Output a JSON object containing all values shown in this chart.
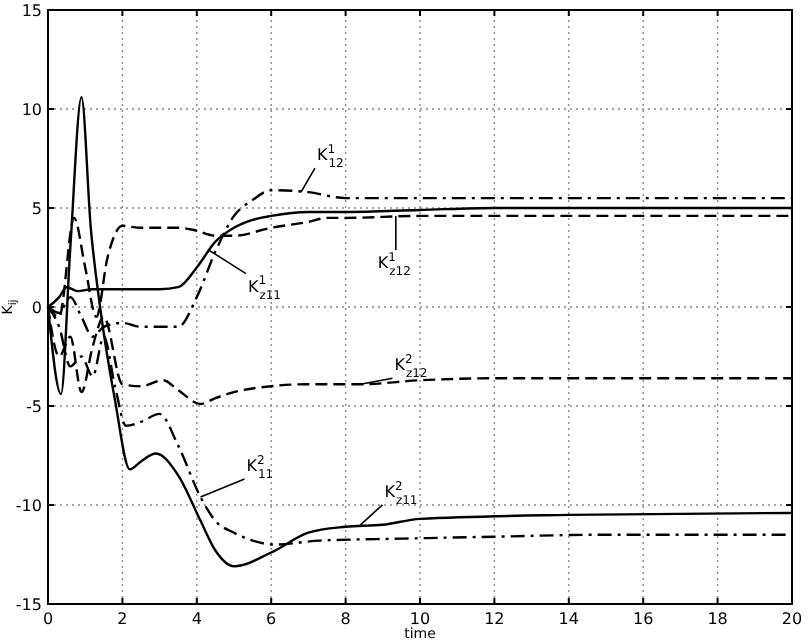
{
  "chart_data": {
    "type": "line",
    "xlabel": "time",
    "ylabel": "K$_{ij}$",
    "xlim": [
      0,
      20
    ],
    "ylim": [
      -15,
      15
    ],
    "xticks": [
      0,
      2,
      4,
      6,
      8,
      10,
      12,
      14,
      16,
      18,
      20
    ],
    "yticks": [
      -15,
      -10,
      -5,
      0,
      5,
      10,
      15
    ],
    "grid": true,
    "marker": "none",
    "series": [
      {
        "color": "#000000",
        "line_style": "dashdot",
        "x": [
          0,
          0.3,
          0.6,
          0.9,
          1.2,
          1.5,
          2,
          2.5,
          3,
          3.5,
          4,
          4.5,
          5,
          5.5,
          6,
          7,
          8,
          10,
          12,
          15,
          20
        ],
        "values": [
          0,
          -0.3,
          0.5,
          -0.5,
          -1.5,
          -1,
          -0.8,
          -1,
          -1,
          -1,
          0.5,
          2.8,
          4.6,
          5.4,
          5.9,
          5.8,
          5.5,
          5.5,
          5.5,
          5.5,
          5.5
        ]
      },
      {
        "color": "#000000",
        "line_style": "dashed",
        "x": [
          0,
          0.3,
          0.7,
          1.0,
          1.3,
          1.6,
          2,
          2.5,
          3,
          3.5,
          3.9,
          4.5,
          5,
          6,
          7,
          7.5,
          8,
          10,
          12,
          15,
          20
        ],
        "values": [
          0,
          -0.5,
          4.5,
          2,
          -0.5,
          2.5,
          4.1,
          4.0,
          4.0,
          4.0,
          3.9,
          3.6,
          3.6,
          4.0,
          4.3,
          4.5,
          4.5,
          4.6,
          4.6,
          4.6,
          4.6
        ]
      },
      {
        "color": "#000000",
        "line_style": "solid",
        "x": [
          0,
          0.3,
          0.5,
          0.8,
          1.2,
          1.5,
          2,
          2.5,
          3,
          3.5,
          4,
          4.5,
          5,
          5.5,
          6,
          7,
          8,
          10,
          12,
          15,
          20
        ],
        "values": [
          0,
          0.5,
          1.0,
          0.8,
          0.9,
          0.9,
          0.9,
          0.9,
          0.9,
          1.0,
          2.0,
          3.3,
          4.0,
          4.4,
          4.6,
          4.8,
          4.8,
          4.9,
          5.0,
          5.0,
          5.0
        ]
      },
      {
        "color": "#000000",
        "line_style": "dashed",
        "x": [
          0,
          0.3,
          0.6,
          0.9,
          1.2,
          1.5,
          2,
          2.5,
          3.1,
          3.5,
          4.1,
          4.5,
          5,
          6,
          7,
          8.4,
          10,
          12,
          15,
          20
        ],
        "values": [
          0,
          -2.5,
          -1.5,
          -4.3,
          -2,
          -0.5,
          -3.9,
          -4,
          -3.7,
          -4.2,
          -4.9,
          -4.6,
          -4.3,
          -4,
          -3.9,
          -3.9,
          -3.7,
          -3.6,
          -3.6,
          -3.6
        ]
      },
      {
        "color": "#000000",
        "line_style": "dashdot",
        "x": [
          0,
          0.3,
          0.6,
          0.9,
          1.2,
          1.5,
          1.8,
          2.1,
          2.5,
          3,
          3.5,
          4.1,
          4.5,
          5,
          5.5,
          6.1,
          7.3,
          9.5,
          12,
          15,
          20
        ],
        "values": [
          0,
          -1,
          -3,
          -2.5,
          -3.5,
          -1.5,
          -4,
          -6.0,
          -5.8,
          -5.4,
          -7,
          -9.6,
          -10.8,
          -11.4,
          -11.8,
          -12.0,
          -11.8,
          -11.7,
          -11.6,
          -11.5,
          -11.5
        ]
      },
      {
        "color": "#000000",
        "line_style": "solid",
        "x": [
          0,
          0.35,
          0.6,
          0.9,
          1.15,
          1.4,
          1.8,
          2.2,
          2.5,
          2.9,
          3.5,
          4.1,
          4.5,
          5,
          6,
          7,
          8,
          9,
          10,
          14,
          20
        ],
        "values": [
          0,
          -4.4,
          3,
          10.6,
          4,
          0,
          -4.7,
          -8.2,
          -7.8,
          -7.4,
          -8.5,
          -10.8,
          -12.3,
          -13.1,
          -12.4,
          -11.4,
          -11.1,
          -11.0,
          -10.7,
          -10.5,
          -10.4
        ]
      }
    ],
    "annotations": [
      {
        "text": "K$^{1}$$_{12}$",
        "x": 6.8,
        "y": 5.8
      },
      {
        "text": "K$^{1}$$_{z11}$",
        "x": 4.3,
        "y": 2.9
      },
      {
        "text": "K$^{1}$$_{z12}$",
        "x": 9.35,
        "y": 4.6
      },
      {
        "text": "K$^{2}$$_{z12}$",
        "x": 8.4,
        "y": -3.9
      },
      {
        "text": "K$^{2}$$_{11}$",
        "x": 4.1,
        "y": -9.6
      },
      {
        "text": "K$^{2}$$_{z11}$",
        "x": 8.4,
        "y": -11.0
      }
    ]
  }
}
